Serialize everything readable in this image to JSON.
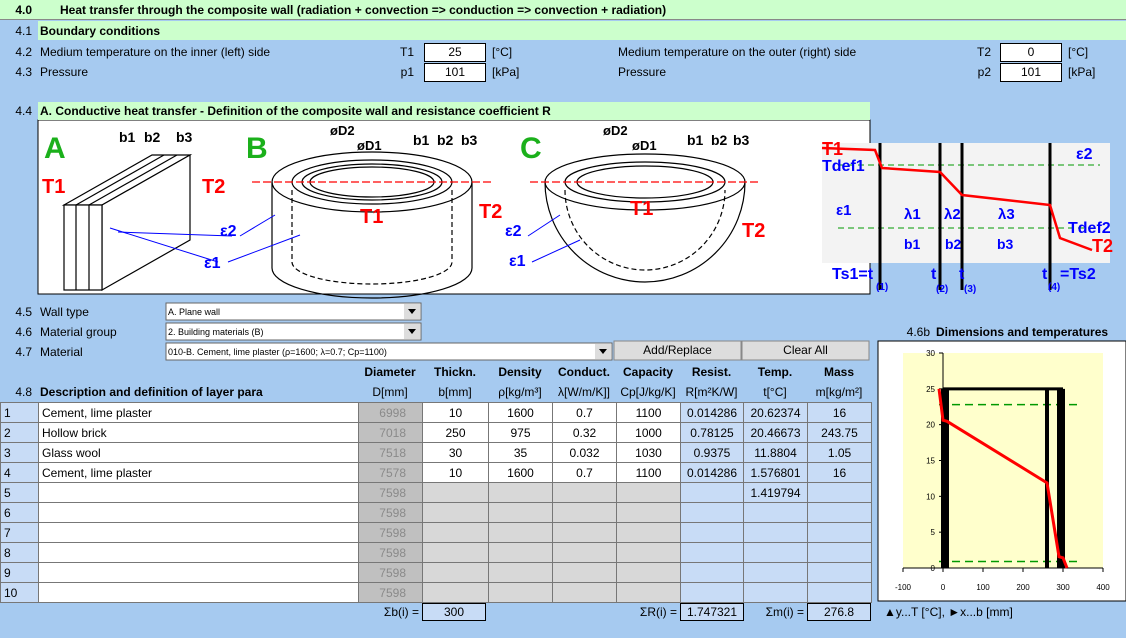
{
  "header": {
    "number": "4.0",
    "title": "Heat transfer through the composite wall (radiation + convection => conduction => convection + radiation)"
  },
  "boundary": {
    "number": "4.1",
    "title": "Boundary conditions",
    "rows": [
      {
        "number": "4.2",
        "left_label": "Medium temperature on the inner (left) side",
        "left_symbol": "T1",
        "left_value": 25,
        "left_unit": "[°C]",
        "right_label": "Medium temperature on the outer (right) side",
        "right_symbol": "T2",
        "right_value": 0,
        "right_unit": "[°C]"
      },
      {
        "number": "4.3",
        "left_label": "Pressure",
        "left_symbol": "p1",
        "left_value": 101,
        "left_unit": "[kPa]",
        "right_label": "Pressure",
        "right_symbol": "p2",
        "right_value": 101,
        "right_unit": "[kPa]"
      }
    ]
  },
  "wall_section": {
    "number": "4.4",
    "title": "A. Conductive heat transfer - Definition of the composite wall and resistance coefficient R"
  },
  "diagram": {
    "labels": [
      "A",
      "T1",
      "T2",
      "b1",
      "b2",
      "b3",
      "ε2",
      "ε1",
      "B",
      "øD2",
      "øD1",
      "b1",
      "b2",
      "b3",
      "T1",
      "T2",
      "ε2",
      "ε1",
      "C",
      "øD2",
      "øD1",
      "b1",
      "b2",
      "b3",
      "T1",
      "T2",
      "T1",
      "Tdef1",
      "ε2",
      "ε1",
      "λ1",
      "λ2",
      "λ3",
      "Tdef2",
      "T2",
      "b1",
      "b2",
      "b3",
      "Ts1=t",
      "(1)",
      "t",
      "(2)",
      "t",
      "(3)",
      "t",
      "(4)",
      "=Ts2"
    ]
  },
  "inputs": [
    {
      "number": "4.5",
      "label": "Wall type",
      "value": "A. Plane wall"
    },
    {
      "number": "4.6",
      "label": "Material group",
      "value": "2. Building materials (B)"
    },
    {
      "number": "4.7",
      "label": "Material",
      "value": "010-B.  Cement, lime plaster (ρ=1600;  λ=0.7;  Cp=1100)"
    }
  ],
  "buttons": [
    "Add/Replace",
    "Clear All"
  ],
  "table": {
    "number": "4.8",
    "title": "Description and definition of layer para",
    "columns": [
      {
        "name": "Diameter",
        "unit": "D[mm]"
      },
      {
        "name": "Thickn.",
        "unit": "b[mm]"
      },
      {
        "name": "Density",
        "unit": "ρ[kg/m³]"
      },
      {
        "name": "Conduct.",
        "unit": "λ[W/m/K]]"
      },
      {
        "name": "Capacity",
        "unit": "Cp[J/kg/K]"
      },
      {
        "name": "Resist.",
        "unit": "R[m²K/W]"
      },
      {
        "name": "Temp.",
        "unit": "t[°C]"
      },
      {
        "name": "Mass",
        "unit": "m[kg/m²]"
      }
    ],
    "rows": [
      [
        1,
        "Cement, lime plaster",
        6998,
        10,
        1600,
        0.7,
        1100,
        0.014286,
        20.62374,
        16
      ],
      [
        2,
        "Hollow brick",
        7018,
        250,
        975,
        0.32,
        1000,
        0.78125,
        20.46673,
        243.75
      ],
      [
        3,
        "Glass wool",
        7518,
        30,
        35,
        0.032,
        1030,
        0.9375,
        11.8804,
        1.05
      ],
      [
        4,
        "Cement, lime plaster",
        7578,
        10,
        1600,
        0.7,
        1100,
        0.014286,
        1.576801,
        16
      ],
      [
        5,
        null,
        7598,
        null,
        null,
        null,
        null,
        null,
        1.419794,
        null
      ],
      [
        6,
        null,
        7598,
        null,
        null,
        null,
        null,
        null,
        null,
        null
      ],
      [
        7,
        null,
        7598,
        null,
        null,
        null,
        null,
        null,
        null,
        null
      ],
      [
        8,
        null,
        7598,
        null,
        null,
        null,
        null,
        null,
        null,
        null
      ],
      [
        9,
        null,
        7598,
        null,
        null,
        null,
        null,
        null,
        null,
        null
      ],
      [
        10,
        null,
        7598,
        null,
        null,
        null,
        null,
        null,
        null,
        null
      ]
    ],
    "totals": [
      {
        "label": "Σb(i) =",
        "value": 300
      },
      {
        "label": "ΣR(i) =",
        "value": 1.747321
      },
      {
        "label": "Σm(i) =",
        "value": 276.8
      }
    ]
  },
  "chart_data": {
    "type": "line",
    "number": "4.6b",
    "title": "Dimensions and temperatures",
    "caption": "▲y...T [°C], ►x...b [mm]",
    "xlim": [
      -100,
      400
    ],
    "xticks": [
      -100,
      0,
      100,
      200,
      300,
      400
    ],
    "ylim": [
      0,
      30
    ],
    "yticks": [
      0,
      5,
      10,
      15,
      20,
      25,
      30
    ],
    "series": [
      {
        "color": "#ff0000",
        "x": [
          -10,
          0,
          10,
          260,
          290,
          300,
          310
        ],
        "values": [
          25,
          20.62,
          20.47,
          11.88,
          1.58,
          1.42,
          0
        ]
      }
    ],
    "walls": {
      "color": "#000000",
      "x": [
        0,
        10,
        260,
        290,
        300
      ],
      "height": 25
    },
    "reference_lines": {
      "color": "#009900",
      "values": [
        22.8,
        0.9
      ]
    }
  }
}
